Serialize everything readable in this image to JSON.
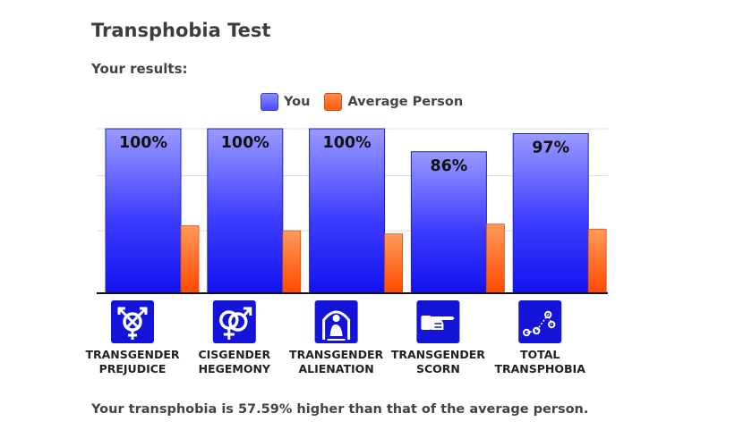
{
  "page": {
    "title": "Transphobia Test",
    "subtitle": "Your results:",
    "summary": "Your transphobia is 57.59% higher than that of the average person."
  },
  "legend": [
    {
      "label": "You",
      "color": "#5a5aff"
    },
    {
      "label": "Average Person",
      "color": "#ff6a20"
    }
  ],
  "chart_data": {
    "type": "bar",
    "categories": [
      [
        "TRANSGENDER",
        "PREJUDICE"
      ],
      [
        "CISGENDER",
        "HEGEMONY"
      ],
      [
        "TRANSGENDER",
        "ALIENATION"
      ],
      [
        "TRANSGENDER",
        "SCORN"
      ],
      [
        "TOTAL",
        "TRANSPHOBIA"
      ]
    ],
    "icons": [
      "transgender-symbol-icon",
      "cisgender-symbol-icon",
      "alienation-figure-icon",
      "pointing-hand-icon",
      "trend-line-icon"
    ],
    "series": [
      {
        "name": "You",
        "values": [
          100,
          100,
          100,
          86,
          97
        ],
        "labels": [
          "100%",
          "100%",
          "100%",
          "86%",
          "97%"
        ]
      },
      {
        "name": "Average Person",
        "values": [
          41,
          38,
          36,
          42,
          39
        ]
      }
    ],
    "ylim": [
      0,
      100
    ],
    "grid": true,
    "legend_position": "top-center"
  }
}
